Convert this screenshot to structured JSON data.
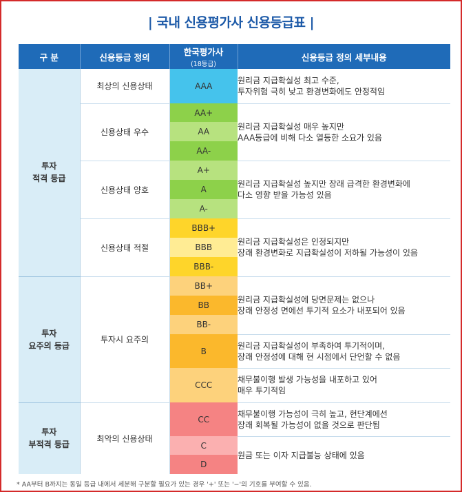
{
  "title": "국내 신용평가사 신용등급표",
  "title_bar": "|",
  "header": {
    "col1": "구  분",
    "col2": "신용등급 정의",
    "col3": "한국평가사",
    "col3_sub": "(18등급)",
    "col4": "신용등급 정의 세부내용"
  },
  "categories": [
    {
      "line1": "투자",
      "line2": "적격 등급"
    },
    {
      "line1": "투자",
      "line2": "요주의 등급"
    },
    {
      "line1": "투자",
      "line2": "부적격 등급"
    }
  ],
  "definitions": [
    "최상의 신용상태",
    "신용상태 우수",
    "신용상태 양호",
    "신용상태 적절",
    "투자시 요주의",
    "최악의 신용상태"
  ],
  "grades": [
    {
      "label": "AAA",
      "color": "#45c3ec"
    },
    {
      "label": "AA+",
      "color": "#8dd14a"
    },
    {
      "label": "AA",
      "color": "#b7e27f"
    },
    {
      "label": "AA-",
      "color": "#8dd14a"
    },
    {
      "label": "A+",
      "color": "#b7e27f"
    },
    {
      "label": "A",
      "color": "#8dd14a"
    },
    {
      "label": "A-",
      "color": "#b7e27f"
    },
    {
      "label": "BBB+",
      "color": "#fed52a"
    },
    {
      "label": "BBB",
      "color": "#ffec94"
    },
    {
      "label": "BBB-",
      "color": "#fed52a"
    },
    {
      "label": "BB+",
      "color": "#fdd27c"
    },
    {
      "label": "BB",
      "color": "#fbb82c"
    },
    {
      "label": "BB-",
      "color": "#fdd27c"
    },
    {
      "label": "B",
      "color": "#fbb82c"
    },
    {
      "label": "CCC",
      "color": "#fdd27c"
    },
    {
      "label": "CC",
      "color": "#f58383"
    },
    {
      "label": "C",
      "color": "#fbb0b0"
    },
    {
      "label": "D",
      "color": "#f58383"
    }
  ],
  "details": [
    {
      "line1": "원리금 지급확실성 최고 수준,",
      "line2": "투자위험 극히 낮고 환경변화에도 안정적임"
    },
    {
      "line1": "원리금 지급확실성 매우 높지만",
      "line2": "AAA등급에 비해 다소 열등한 소요가 있음"
    },
    {
      "line1": "원리금 지급확실성 높지만 장래 급격한 환경변화에",
      "line2": "다소 영향 받을 가능성 있음"
    },
    {
      "line1": "원리금 지급확실성은 인정되지만",
      "line2": "장래 환경변화로 지급확실성이 저하될 가능성이 있음"
    },
    {
      "line1": "원리금 지급확실성에 당면문제는 없으나",
      "line2": "장래 안정성 면에선 투기적 요소가 내포되어 있음"
    },
    {
      "line1": "원리금 지급확실성이 부족하여 투기적이며,",
      "line2": "장래 안정성에 대해 현 시점에서 단언할 수 없음"
    },
    {
      "line1": "채무불이행 발생 가능성을 내포하고 있어",
      "line2": "매우 투기적임"
    },
    {
      "line1": "채무불이행 가능성이 극히 높고, 현단계에선",
      "line2": "장래 회복될 가능성이 없을 것으로 판단됨"
    },
    {
      "line1": "원금 또는 이자 지급불능 상태에 있음",
      "line2": ""
    }
  ],
  "footnote": "* AA부터 B까지는 동일 등급 내에서 세분해 구분할 필요가 있는 경우 '+' 또는 '−'의 기호를 부여할 수 있음."
}
